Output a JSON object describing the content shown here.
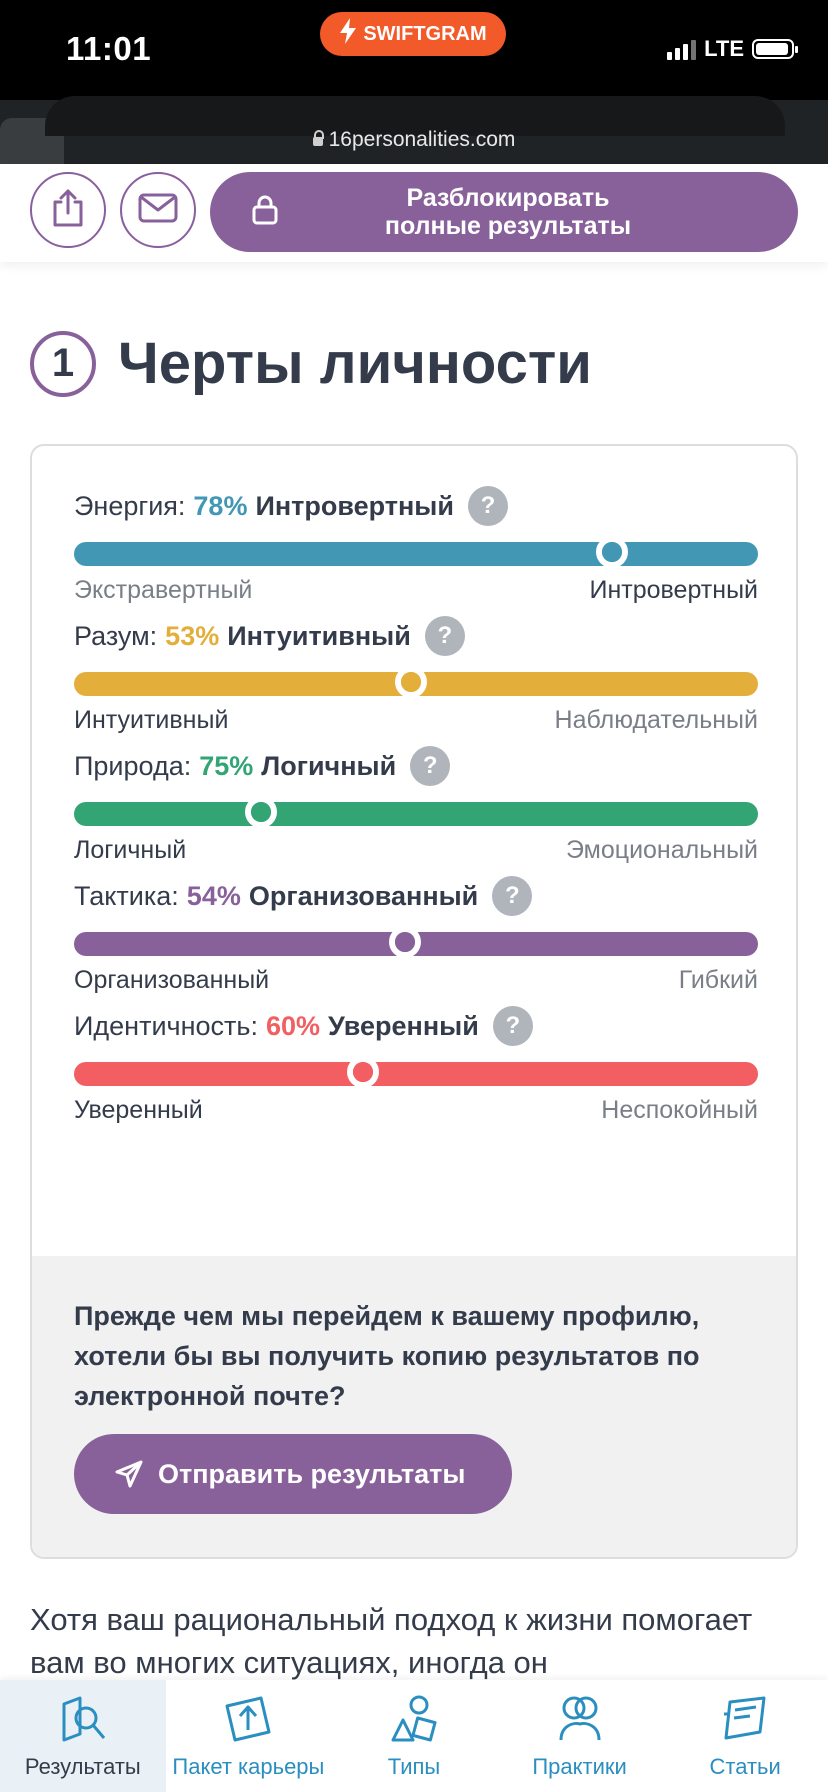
{
  "status_bar": {
    "time": "11:01",
    "app_badge": "SWIFTGRAM",
    "network": "LTE"
  },
  "browser": {
    "url": "16personalities.com"
  },
  "toolbar": {
    "unlock_label": "Разблокировать\nполные результаты"
  },
  "section": {
    "number": "1",
    "title": "Черты личности"
  },
  "traits": [
    {
      "label": "Энергия:",
      "percent": "78%",
      "name": "Интровертный",
      "left": "Экстравертный",
      "right": "Интровертный",
      "color": "#4298b4",
      "position": 0.787,
      "active_side": "right"
    },
    {
      "label": "Разум:",
      "percent": "53%",
      "name": "Интуитивный",
      "left": "Интуитивный",
      "right": "Наблюдательный",
      "color": "#e4ae3a",
      "position": 0.493,
      "active_side": "left"
    },
    {
      "label": "Природа:",
      "percent": "75%",
      "name": "Логичный",
      "left": "Логичный",
      "right": "Эмоциональный",
      "color": "#33a474",
      "position": 0.274,
      "active_side": "left"
    },
    {
      "label": "Тактика:",
      "percent": "54%",
      "name": "Организованный",
      "left": "Организованный",
      "right": "Гибкий",
      "color": "#88619a",
      "position": 0.484,
      "active_side": "left"
    },
    {
      "label": "Идентичность:",
      "percent": "60%",
      "name": "Уверенный",
      "left": "Уверенный",
      "right": "Неспокойный",
      "color": "#f25e62",
      "position": 0.423,
      "active_side": "left"
    }
  ],
  "email_prompt": {
    "question": "Прежде чем мы перейдем к вашему профилю, хотели бы вы получить копию результатов по электронной почте?",
    "button": "Отправить результаты"
  },
  "body_text": "Хотя ваш рациональный подход к жизни помогает вам во многих ситуациях, иногда он",
  "tabbar": [
    {
      "label": "Результаты",
      "icon": "results-icon",
      "active": true
    },
    {
      "label": "Пакет карьеры",
      "icon": "career-icon",
      "active": false
    },
    {
      "label": "Типы",
      "icon": "types-icon",
      "active": false
    },
    {
      "label": "Практики",
      "icon": "practices-icon",
      "active": false
    },
    {
      "label": "Статьи",
      "icon": "articles-icon",
      "active": false
    }
  ]
}
